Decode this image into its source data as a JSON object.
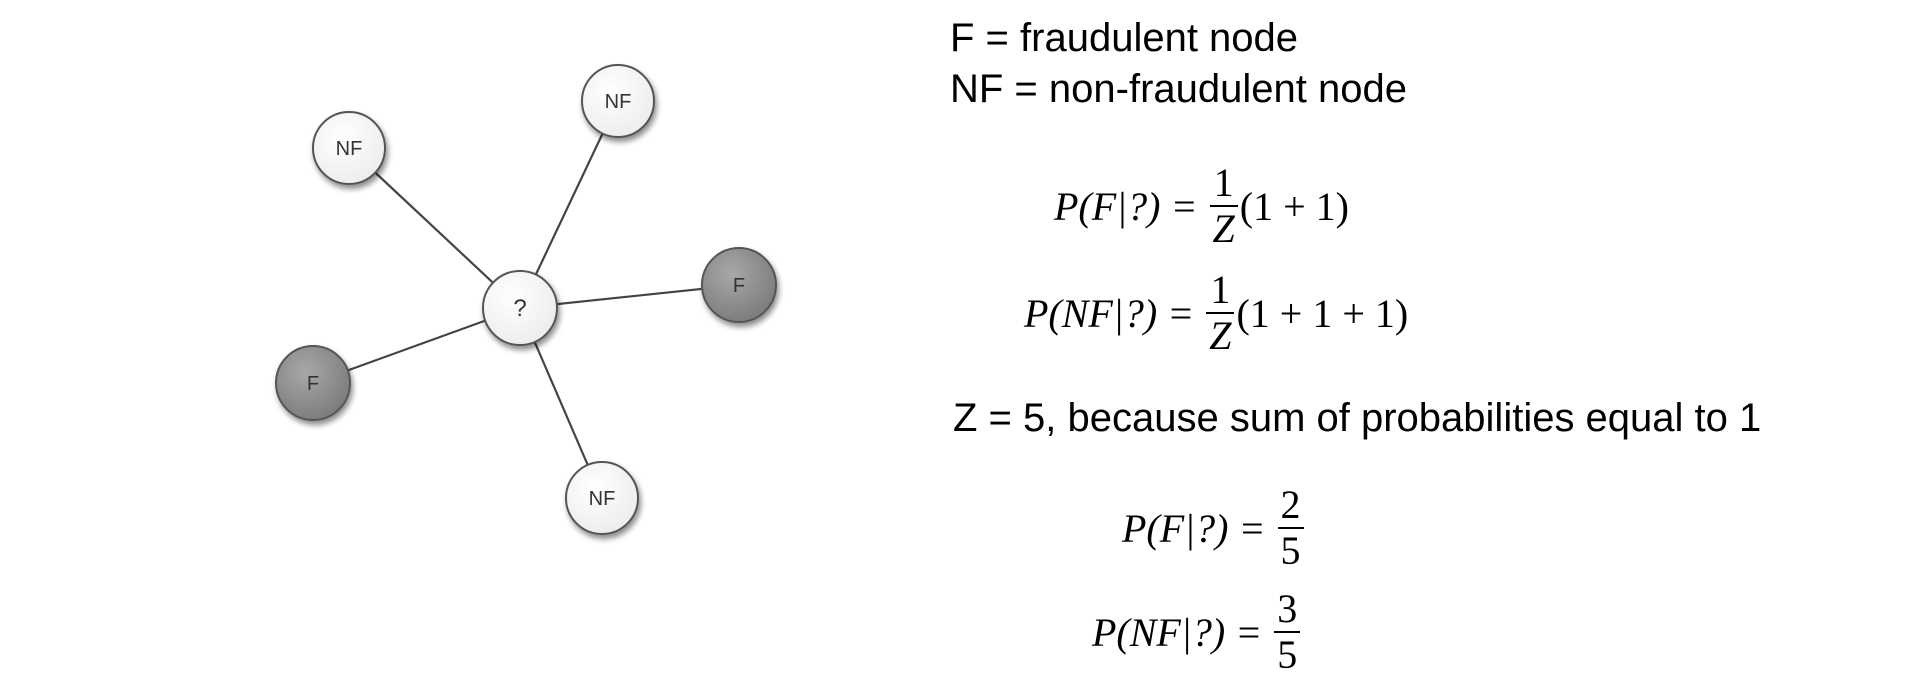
{
  "graph": {
    "center_label": "?",
    "nodes": [
      {
        "id": "nf-top-left",
        "label": "NF",
        "type": "non-fraudulent"
      },
      {
        "id": "nf-top-right",
        "label": "NF",
        "type": "non-fraudulent"
      },
      {
        "id": "f-right",
        "label": "F",
        "type": "fraudulent"
      },
      {
        "id": "f-left",
        "label": "F",
        "type": "fraudulent"
      },
      {
        "id": "nf-bottom",
        "label": "NF",
        "type": "non-fraudulent"
      }
    ],
    "colors": {
      "fraudulent": "#8f8f8f",
      "non_fraudulent": "#ffffff",
      "edge": "#444444",
      "outline": "#555555"
    }
  },
  "legend": {
    "f": "F = fraudulent node",
    "nf": "NF = non-fraudulent node"
  },
  "equations": {
    "pf_lhs": "P(F|?) =",
    "pnf_lhs": "P(NF|?) =",
    "one": "1",
    "z": "Z",
    "pf_rhs": "(1 + 1)",
    "pnf_rhs": "(1 + 1 + 1)",
    "z_note": "Z = 5, because sum of probabilities equal to 1",
    "pf_num": "2",
    "pnf_num": "3",
    "den": "5"
  }
}
